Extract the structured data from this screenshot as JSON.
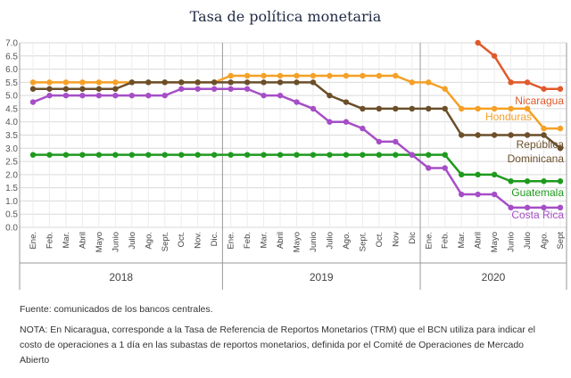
{
  "chart_data": {
    "type": "line",
    "title": "Tasa de política monetaria",
    "ylim": [
      0,
      7
    ],
    "yticks": [
      "0.0",
      "0.5",
      "1.0",
      "1.5",
      "2.0",
      "2.5",
      "3.0",
      "3.5",
      "4.0",
      "4.5",
      "5.0",
      "5.5",
      "6.0",
      "6.5",
      "7.0"
    ],
    "categories": [
      "Ene.",
      "Feb.",
      "Mar.",
      "Abril",
      "Mayo",
      "Junio",
      "Julio",
      "Ago.",
      "Sept.",
      "Oct.",
      "Nov.",
      "Dic.",
      "Ene.",
      "Feb.",
      "Mar.",
      "Abril",
      "Mayo",
      "Junio",
      "Julio",
      "Ago.",
      "Sept.",
      "Oct.",
      "Nov",
      "Dic",
      "Ene.",
      "Feb.",
      "Mar.",
      "Abril",
      "Mayo",
      "Junio",
      "Julio",
      "Ago.",
      "Sept"
    ],
    "years": [
      {
        "label": "2018",
        "start": 0,
        "end": 11
      },
      {
        "label": "2019",
        "start": 12,
        "end": 23
      },
      {
        "label": "2020",
        "start": 24,
        "end": 32
      }
    ],
    "grid": true,
    "series": [
      {
        "name": "Nicaragua",
        "color": "#e05a2b",
        "values": [
          null,
          null,
          null,
          null,
          null,
          null,
          null,
          null,
          null,
          null,
          null,
          null,
          null,
          null,
          null,
          null,
          null,
          null,
          null,
          null,
          null,
          null,
          null,
          null,
          null,
          null,
          null,
          7.0,
          6.5,
          5.5,
          5.5,
          5.25,
          5.25
        ]
      },
      {
        "name": "Honduras",
        "color": "#f5a026",
        "values": [
          5.5,
          5.5,
          5.5,
          5.5,
          5.5,
          5.5,
          5.5,
          5.5,
          5.5,
          5.5,
          5.5,
          5.5,
          5.75,
          5.75,
          5.75,
          5.75,
          5.75,
          5.75,
          5.75,
          5.75,
          5.75,
          5.75,
          5.75,
          5.5,
          5.5,
          5.25,
          4.5,
          4.5,
          4.5,
          4.5,
          4.5,
          3.75,
          3.75
        ]
      },
      {
        "name": "República Dominicana",
        "label_lines": [
          "República",
          "Dominicana"
        ],
        "color": "#6b4f2a",
        "values": [
          5.25,
          5.25,
          5.25,
          5.25,
          5.25,
          5.25,
          5.5,
          5.5,
          5.5,
          5.5,
          5.5,
          5.5,
          5.5,
          5.5,
          5.5,
          5.5,
          5.5,
          5.5,
          5.0,
          4.75,
          4.5,
          4.5,
          4.5,
          4.5,
          4.5,
          4.5,
          3.5,
          3.5,
          3.5,
          3.5,
          3.5,
          3.5,
          3.0
        ]
      },
      {
        "name": "Guatemala",
        "color": "#1e9a1e",
        "values": [
          2.75,
          2.75,
          2.75,
          2.75,
          2.75,
          2.75,
          2.75,
          2.75,
          2.75,
          2.75,
          2.75,
          2.75,
          2.75,
          2.75,
          2.75,
          2.75,
          2.75,
          2.75,
          2.75,
          2.75,
          2.75,
          2.75,
          2.75,
          2.75,
          2.75,
          2.75,
          2.0,
          2.0,
          2.0,
          1.75,
          1.75,
          1.75,
          1.75
        ]
      },
      {
        "name": "Costa Rica",
        "color": "#a64ec7",
        "values": [
          4.75,
          5.0,
          5.0,
          5.0,
          5.0,
          5.0,
          5.0,
          5.0,
          5.0,
          5.25,
          5.25,
          5.25,
          5.25,
          5.25,
          5.0,
          5.0,
          4.75,
          4.5,
          4.0,
          4.0,
          3.75,
          3.25,
          3.25,
          2.75,
          2.25,
          2.25,
          1.25,
          1.25,
          1.25,
          0.75,
          0.75,
          0.75,
          0.75
        ]
      }
    ]
  },
  "source_note": "Fuente: comunicados de los bancos centrales.",
  "footnote": "NOTA: En Nicaragua, corresponde a la Tasa de Referencia de Reportos Monetarios (TRM) que el BCN utiliza para indicar el costo de operaciones a 1 día en las subastas de reportos monetarios, definida por el Comité de Operaciones de Mercado Abierto"
}
